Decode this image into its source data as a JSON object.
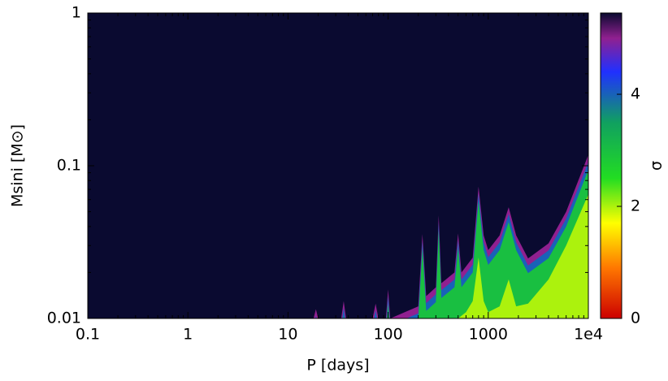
{
  "chart_data": {
    "type": "heatmap",
    "x_label": "P [days]",
    "y_label": "Msini [M⊙]",
    "colorbar_label": "σ",
    "xlog": true,
    "ylog": true,
    "xlim": [
      0.1,
      10000
    ],
    "xticks": [
      0.1,
      1,
      10,
      100,
      1000,
      {
        "value": 10000,
        "label": "1e4"
      }
    ],
    "ylim": [
      0.01,
      1
    ],
    "yticks": [
      0.01,
      0.1,
      1
    ],
    "zlim": [
      0,
      5.45
    ],
    "zticks": [
      0,
      2,
      4
    ],
    "background": "#0a0a30",
    "colorscale": [
      {
        "value": 0,
        "color": "#cc0000"
      },
      {
        "value": 0.9,
        "color": "#ff7700"
      },
      {
        "value": 1.7,
        "color": "#ffff00"
      },
      {
        "value": 2.5,
        "color": "#22dd22"
      },
      {
        "value": 3.5,
        "color": "#10a060"
      },
      {
        "value": 4.4,
        "color": "#2030ff"
      },
      {
        "value": 5.0,
        "color": "#902090"
      },
      {
        "value": 5.45,
        "color": "#0a0a30"
      }
    ],
    "contours": [
      {
        "level": 5,
        "x": [
          0.1,
          15,
          18,
          19,
          20,
          34,
          36,
          38,
          70,
          75,
          80,
          95,
          100,
          105,
          200,
          220,
          240,
          300,
          320,
          340,
          460,
          500,
          540,
          700,
          800,
          900,
          1000,
          1300,
          1600,
          1900,
          2500,
          4000,
          6000,
          10000
        ],
        "y": [
          0.01,
          0.01,
          0.01,
          0.0115,
          0.01,
          0.01,
          0.013,
          0.01,
          0.01,
          0.0125,
          0.01,
          0.01,
          0.0155,
          0.01,
          0.012,
          0.0357,
          0.014,
          0.016,
          0.0473,
          0.017,
          0.02,
          0.036,
          0.02,
          0.025,
          0.073,
          0.035,
          0.028,
          0.035,
          0.0535,
          0.035,
          0.0247,
          0.031,
          0.05,
          0.118
        ]
      },
      {
        "level": 4,
        "x": [
          0.1,
          15,
          18,
          19,
          20,
          34,
          36,
          38,
          70,
          75,
          80,
          95,
          100,
          105,
          200,
          220,
          240,
          300,
          320,
          340,
          460,
          500,
          540,
          700,
          800,
          900,
          1000,
          1300,
          1600,
          1900,
          2500,
          4000,
          6000,
          10000
        ],
        "y": [
          0.009,
          0.009,
          0.009,
          0.0104,
          0.009,
          0.009,
          0.0117,
          0.009,
          0.009,
          0.0113,
          0.009,
          0.009,
          0.014,
          0.009,
          0.0108,
          0.0321,
          0.0126,
          0.0144,
          0.0426,
          0.0153,
          0.018,
          0.0324,
          0.018,
          0.0225,
          0.0657,
          0.0315,
          0.0252,
          0.0315,
          0.0482,
          0.0315,
          0.0222,
          0.0279,
          0.045,
          0.106
        ]
      },
      {
        "level": 3,
        "x": [
          0.1,
          15,
          18,
          19,
          20,
          34,
          36,
          38,
          70,
          75,
          80,
          95,
          100,
          105,
          200,
          220,
          240,
          300,
          320,
          340,
          460,
          500,
          540,
          700,
          800,
          900,
          1000,
          1300,
          1600,
          1900,
          2500,
          4000,
          6000,
          10000
        ],
        "y": [
          0.008,
          0.008,
          0.008,
          0.0092,
          0.008,
          0.008,
          0.0104,
          0.008,
          0.008,
          0.01,
          0.008,
          0.008,
          0.0124,
          0.008,
          0.0096,
          0.0286,
          0.0112,
          0.0128,
          0.0378,
          0.0136,
          0.016,
          0.0288,
          0.016,
          0.02,
          0.0584,
          0.028,
          0.0224,
          0.028,
          0.0428,
          0.028,
          0.0198,
          0.0248,
          0.04,
          0.094
        ]
      },
      {
        "level": 2,
        "x": [
          500,
          600,
          700,
          800,
          900,
          1000,
          1300,
          1600,
          1900,
          2500,
          4000,
          6000,
          10000
        ],
        "y": [
          0.01,
          0.011,
          0.013,
          0.025,
          0.013,
          0.011,
          0.012,
          0.018,
          0.012,
          0.0125,
          0.018,
          0.03,
          0.065
        ]
      }
    ]
  }
}
